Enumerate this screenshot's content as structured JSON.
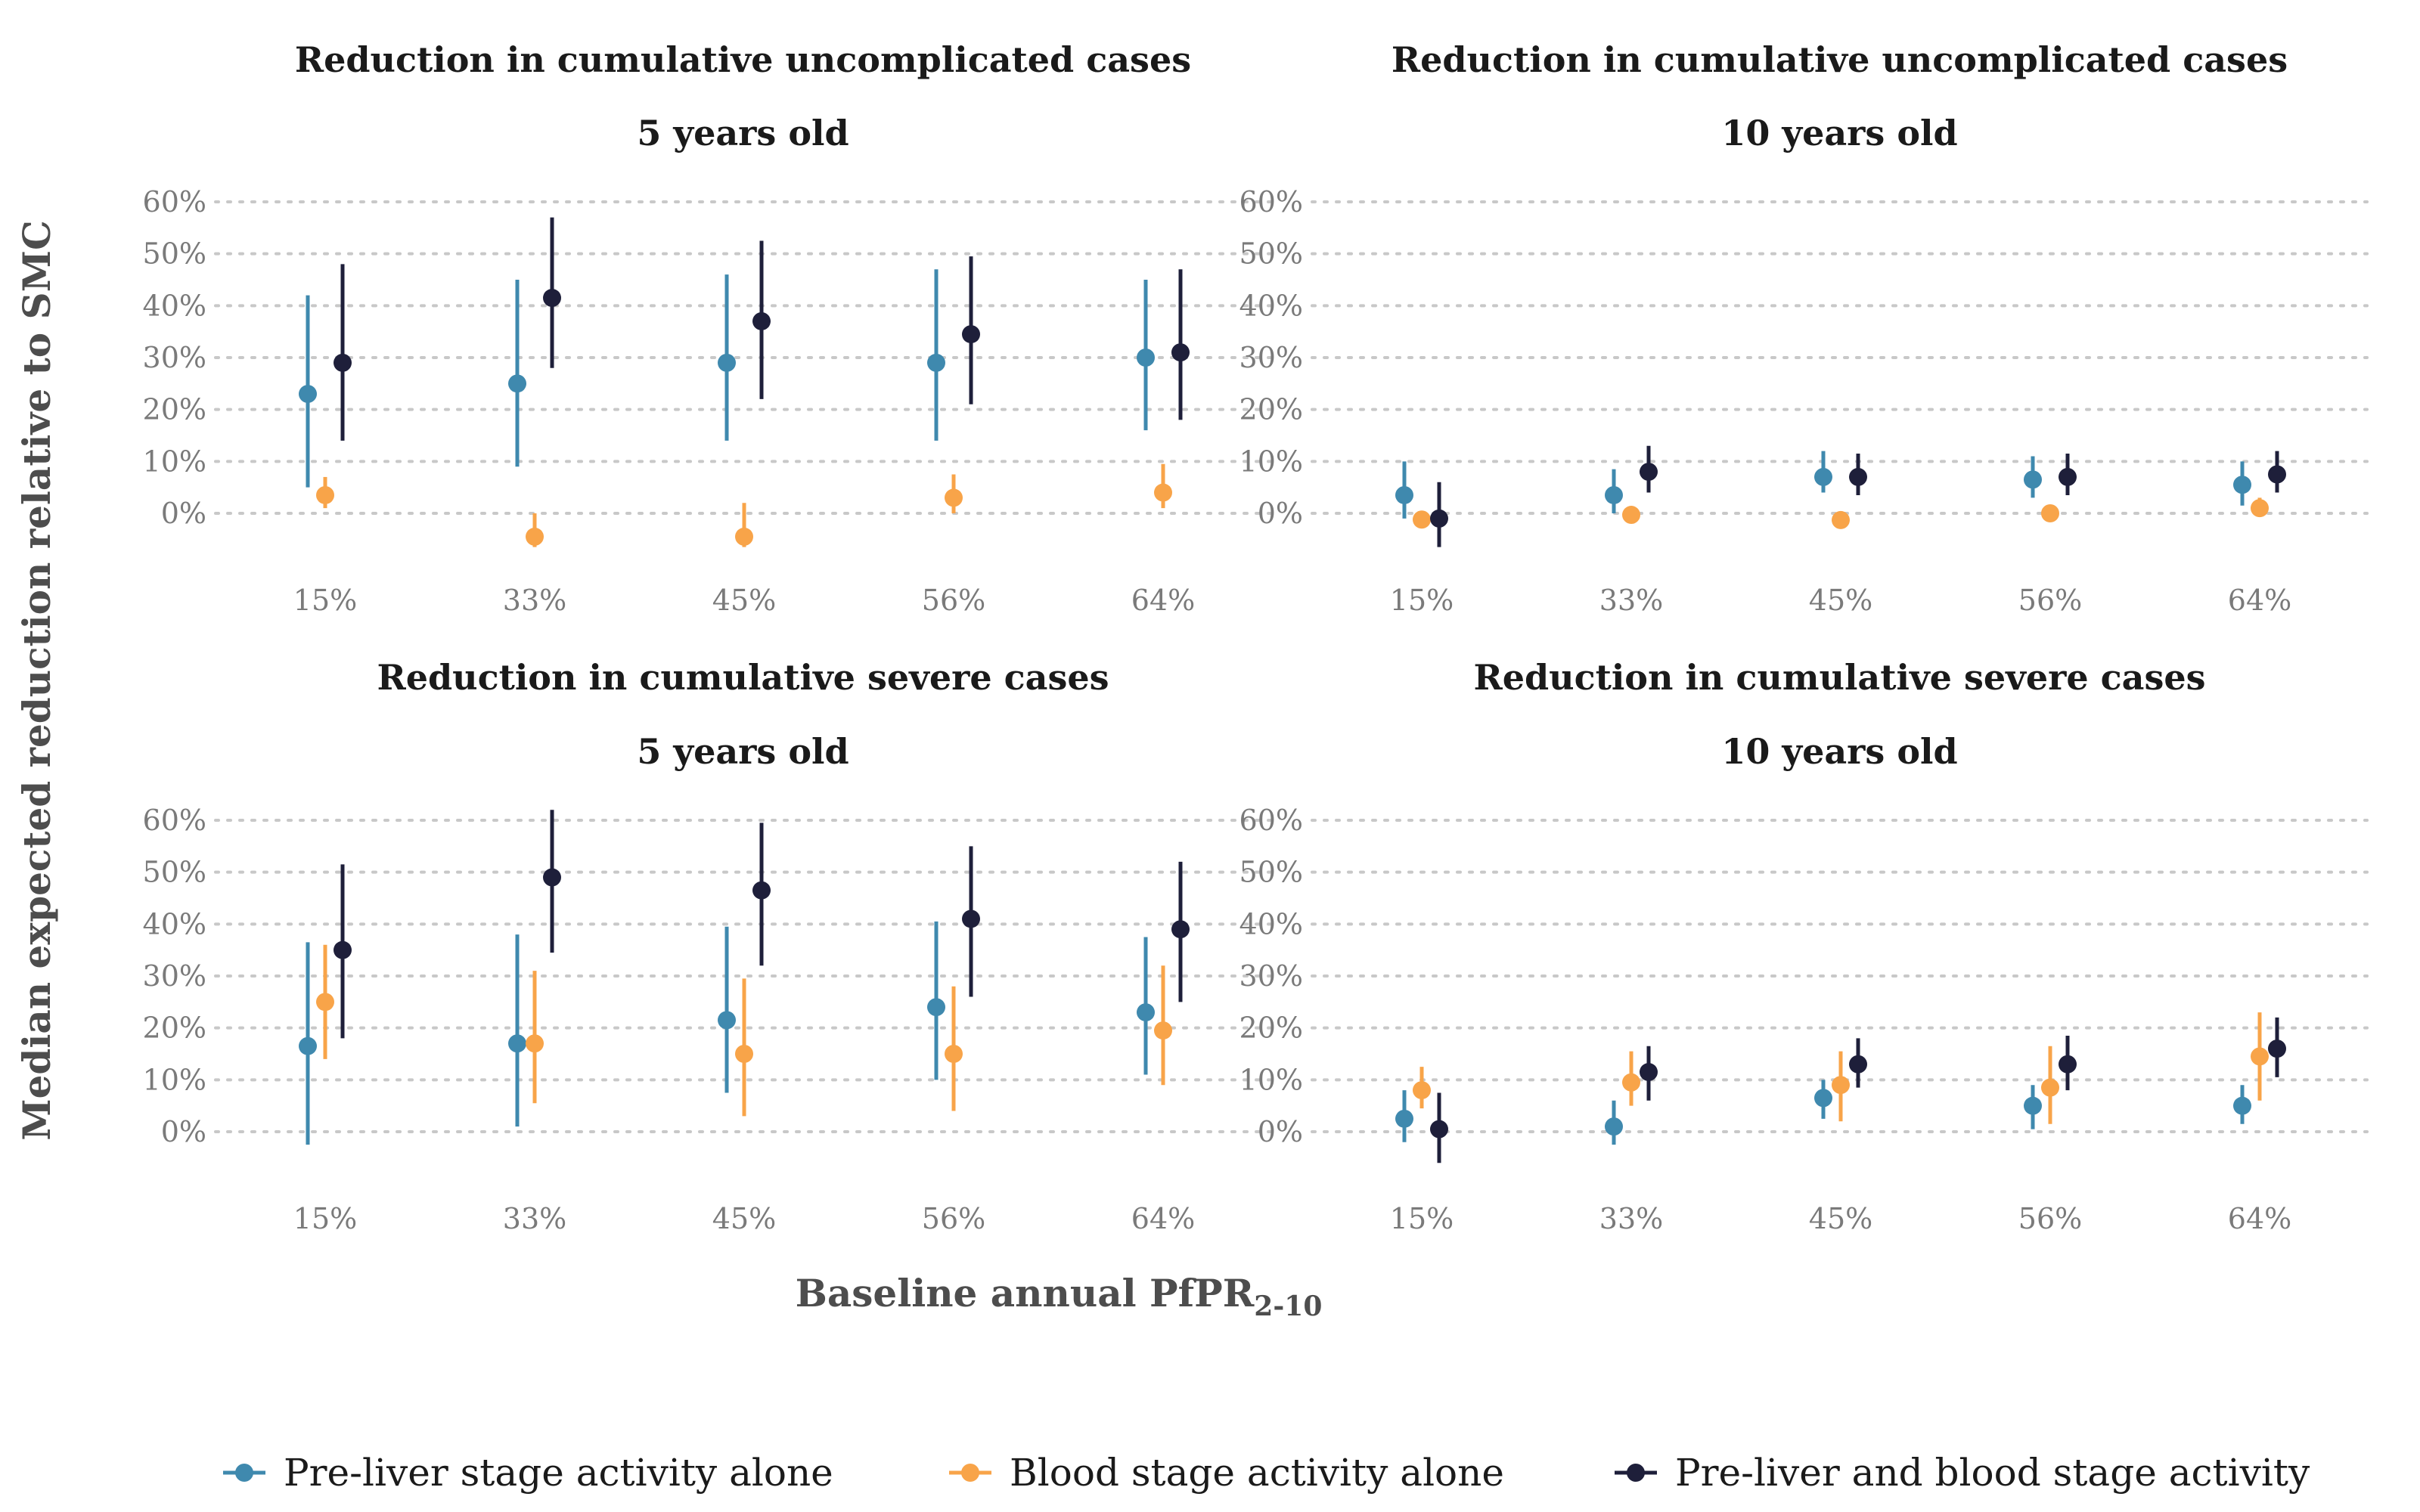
{
  "chart_data": {
    "type": "scatter",
    "ylabel": "Median expected reduction relative to SMC",
    "xlabel_main": "Baseline annual PfPR",
    "xlabel_sub": "2-10",
    "categories": [
      "15%",
      "33%",
      "45%",
      "56%",
      "64%"
    ],
    "yticks": [
      "0%",
      "10%",
      "20%",
      "30%",
      "40%",
      "50%",
      "60%"
    ],
    "ylim": [
      -0.11,
      0.64
    ],
    "grid": "horizontal-dotted",
    "legend_position": "bottom",
    "colors": {
      "pre_liver": "#3F89AE",
      "blood": "#F8A449",
      "both": "#1E1F3A"
    },
    "series": [
      {
        "name": "Pre-liver stage activity alone",
        "key": "pre_liver"
      },
      {
        "name": "Blood stage activity alone",
        "key": "blood"
      },
      {
        "name": "Pre-liver and blood stage activity",
        "key": "both"
      }
    ],
    "panels": [
      {
        "id": "unc-5",
        "title_line1": "Reduction in cumulative uncomplicated cases",
        "title_line2": "5 years old",
        "data": {
          "pre_liver": {
            "median": [
              0.23,
              0.25,
              0.29,
              0.29,
              0.3
            ],
            "lower": [
              0.05,
              0.09,
              0.14,
              0.14,
              0.16
            ],
            "upper": [
              0.42,
              0.45,
              0.46,
              0.47,
              0.45
            ]
          },
          "blood": {
            "median": [
              0.035,
              -0.045,
              -0.045,
              0.03,
              0.04
            ],
            "lower": [
              0.01,
              -0.065,
              -0.065,
              0.0,
              0.01
            ],
            "upper": [
              0.07,
              0.0,
              0.02,
              0.075,
              0.095
            ]
          },
          "both": {
            "median": [
              0.29,
              0.415,
              0.37,
              0.345,
              0.31
            ],
            "lower": [
              0.14,
              0.28,
              0.22,
              0.21,
              0.18
            ],
            "upper": [
              0.48,
              0.57,
              0.525,
              0.495,
              0.47
            ]
          }
        }
      },
      {
        "id": "unc-10",
        "title_line1": "Reduction in cumulative uncomplicated cases",
        "title_line2": "10 years old",
        "data": {
          "pre_liver": {
            "median": [
              0.035,
              0.035,
              0.07,
              0.065,
              0.055
            ],
            "lower": [
              -0.01,
              0.0,
              0.04,
              0.03,
              0.015
            ],
            "upper": [
              0.1,
              0.085,
              0.12,
              0.11,
              0.1
            ]
          },
          "blood": {
            "median": [
              -0.012,
              -0.003,
              -0.013,
              0.0,
              0.01
            ],
            "lower": [
              -0.025,
              -0.01,
              -0.02,
              -0.008,
              0.0
            ],
            "upper": [
              0.0,
              0.005,
              0.0,
              0.005,
              0.03
            ]
          },
          "both": {
            "median": [
              -0.01,
              0.08,
              0.07,
              0.07,
              0.075
            ],
            "lower": [
              -0.065,
              0.04,
              0.035,
              0.035,
              0.04
            ],
            "upper": [
              0.06,
              0.13,
              0.115,
              0.115,
              0.12
            ]
          }
        }
      },
      {
        "id": "sev-5",
        "title_line1": "Reduction in cumulative severe cases",
        "title_line2": "5 years old",
        "data": {
          "pre_liver": {
            "median": [
              0.165,
              0.17,
              0.215,
              0.24,
              0.23
            ],
            "lower": [
              -0.025,
              0.01,
              0.075,
              0.1,
              0.11
            ],
            "upper": [
              0.365,
              0.38,
              0.395,
              0.405,
              0.375
            ]
          },
          "blood": {
            "median": [
              0.25,
              0.17,
              0.15,
              0.15,
              0.195
            ],
            "lower": [
              0.14,
              0.055,
              0.03,
              0.04,
              0.09
            ],
            "upper": [
              0.36,
              0.31,
              0.295,
              0.28,
              0.32
            ]
          },
          "both": {
            "median": [
              0.35,
              0.49,
              0.465,
              0.41,
              0.39
            ],
            "lower": [
              0.18,
              0.345,
              0.32,
              0.26,
              0.25
            ],
            "upper": [
              0.515,
              0.62,
              0.595,
              0.55,
              0.52
            ]
          }
        }
      },
      {
        "id": "sev-10",
        "title_line1": "Reduction in cumulative severe cases",
        "title_line2": "10 years old",
        "data": {
          "pre_liver": {
            "median": [
              0.025,
              0.01,
              0.065,
              0.05,
              0.05
            ],
            "lower": [
              -0.02,
              -0.025,
              0.025,
              0.005,
              0.015
            ],
            "upper": [
              0.08,
              0.06,
              0.1,
              0.09,
              0.09
            ]
          },
          "blood": {
            "median": [
              0.08,
              0.095,
              0.09,
              0.085,
              0.145
            ],
            "lower": [
              0.045,
              0.05,
              0.02,
              0.015,
              0.06
            ],
            "upper": [
              0.125,
              0.155,
              0.155,
              0.165,
              0.23
            ]
          },
          "both": {
            "median": [
              0.005,
              0.115,
              0.13,
              0.13,
              0.16
            ],
            "lower": [
              -0.06,
              0.06,
              0.085,
              0.08,
              0.105
            ],
            "upper": [
              0.075,
              0.165,
              0.18,
              0.185,
              0.22
            ]
          }
        }
      }
    ]
  }
}
